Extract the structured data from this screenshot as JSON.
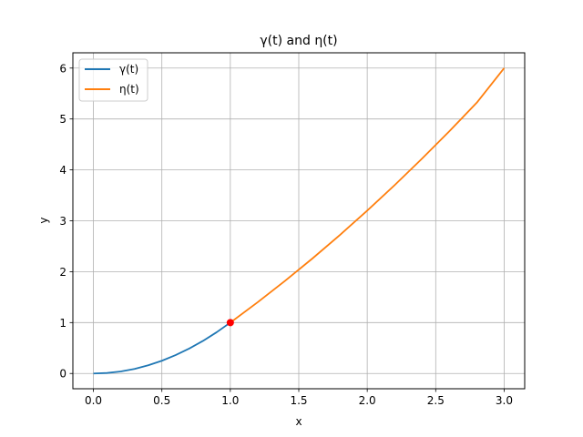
{
  "chart_data": {
    "type": "line",
    "title": "γ(t) and η(t)",
    "xlabel": "x",
    "ylabel": "y",
    "xlim": [
      -0.15,
      3.15
    ],
    "ylim": [
      -0.3,
      6.3
    ],
    "xticks": [
      0.0,
      0.5,
      1.0,
      1.5,
      2.0,
      2.5,
      3.0
    ],
    "xtick_labels": [
      "0.0",
      "0.5",
      "1.0",
      "1.5",
      "2.0",
      "2.5",
      "3.0"
    ],
    "yticks": [
      0,
      1,
      2,
      3,
      4,
      5,
      6
    ],
    "ytick_labels": [
      "0",
      "1",
      "2",
      "3",
      "4",
      "5",
      "6"
    ],
    "grid": true,
    "legend_position": "top-left",
    "series": [
      {
        "name": "γ(t)",
        "color": "#1f77b4",
        "x": [
          0.0,
          0.1,
          0.2,
          0.3,
          0.4,
          0.5,
          0.6,
          0.7,
          0.8,
          0.9,
          1.0
        ],
        "y": [
          0.0,
          0.01,
          0.04,
          0.09,
          0.16,
          0.25,
          0.36,
          0.49,
          0.64,
          0.81,
          1.0
        ]
      },
      {
        "name": "η(t)",
        "color": "#ff7f0e",
        "x": [
          1.0,
          1.2,
          1.4,
          1.6,
          1.8,
          2.0,
          2.2,
          2.4,
          2.6,
          2.8,
          3.0
        ],
        "y": [
          1.0,
          1.4,
          1.82,
          2.26,
          2.72,
          3.2,
          3.7,
          4.22,
          4.76,
          5.32,
          6.0
        ]
      }
    ],
    "marker": {
      "x": 1.0,
      "y": 1.0,
      "color": "#ff0000"
    }
  }
}
